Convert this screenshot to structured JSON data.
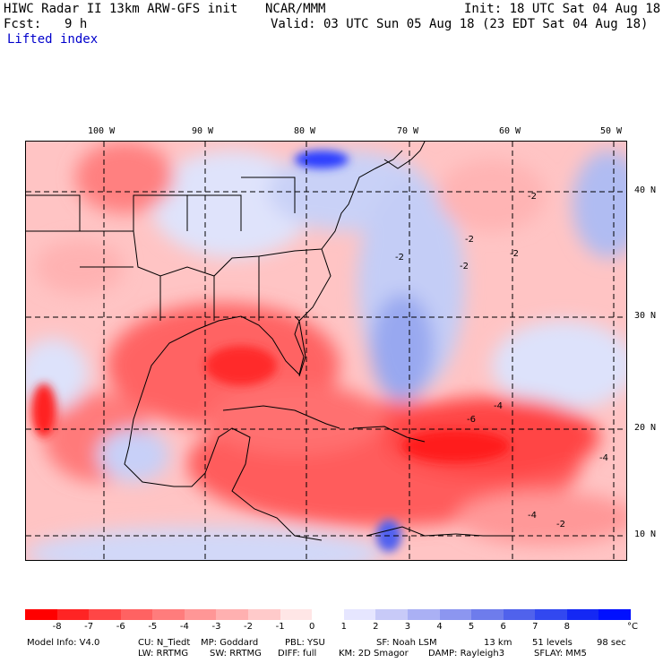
{
  "header": {
    "title_left": "HIWC Radar II 13km ARW-GFS init",
    "title_center": "NCAR/MMM",
    "init": "Init: 18 UTC Sat 04 Aug 18",
    "fcst_label": "Fcst:",
    "fcst_value": "9 h",
    "valid": "Valid: 03 UTC Sun 05 Aug 18 (23 EDT Sat 04 Aug 18)",
    "field": "Lifted index"
  },
  "map": {
    "lon_labels": [
      "100 W",
      "90 W",
      "80 W",
      "70 W",
      "60 W",
      "50 W"
    ],
    "lat_labels": [
      "40 N",
      "30 N",
      "20 N",
      "10 N"
    ],
    "contour_labels": [
      "-2",
      "-2",
      "-2",
      "-2",
      "-4",
      "-6",
      "-4",
      "-4",
      "-2",
      "-2"
    ],
    "colors": {
      "deep_red": "#ff1010",
      "red": "#ff5a5a",
      "light_red": "#ffb4b4",
      "pale": "#ffe0e0",
      "light_blue": "#c8d0f8",
      "blue": "#8ea0f0",
      "deep_blue": "#2a3cff"
    }
  },
  "colorbar": {
    "labels": [
      "-8",
      "-7",
      "-6",
      "-5",
      "-4",
      "-3",
      "-2",
      "-1",
      "0",
      "1",
      "2",
      "3",
      "4",
      "5",
      "6",
      "7",
      "8"
    ],
    "unit": "°C",
    "colors": [
      "#ff0000",
      "#ff2424",
      "#ff4646",
      "#ff6262",
      "#ff7c7c",
      "#ff9696",
      "#ffb0b0",
      "#ffcaca",
      "#ffe6e6",
      "#ffffff",
      "#e6e6ff",
      "#c8caf8",
      "#aab0f4",
      "#8c96f0",
      "#6e7cec",
      "#5062ec",
      "#3248f0",
      "#1428f4",
      "#0010ff"
    ]
  },
  "footer": {
    "line1": [
      "Model Info: V4.0",
      "CU: N_Tiedt",
      "MP: Goddard",
      "PBL: YSU",
      "SF: Noah LSM",
      "13 km",
      "51 levels",
      "98 sec"
    ],
    "line2": [
      "LW: RRTMG",
      "SW: RRTMG",
      "DIFF: full",
      "KM: 2D Smagor",
      "DAMP: Rayleigh3",
      "SFLAY: MM5"
    ]
  }
}
